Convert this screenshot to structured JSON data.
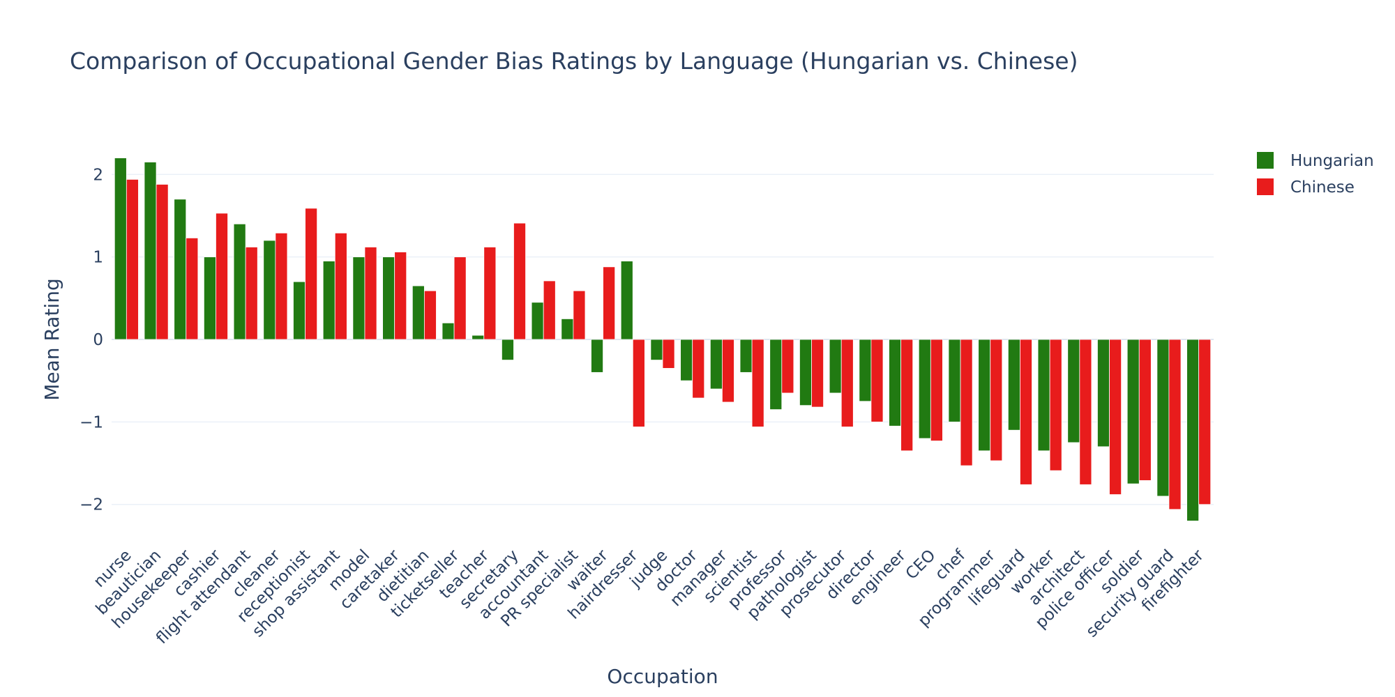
{
  "chart_data": {
    "type": "bar",
    "title": "Comparison of Occupational Gender Bias Ratings by Language (Hungarian vs. Chinese)",
    "xlabel": "Occupation",
    "ylabel": "Mean Rating",
    "ylim": [
      -2.45,
      2.45
    ],
    "yticks": [
      -2,
      -1,
      0,
      1,
      2
    ],
    "ytick_labels": [
      "−2",
      "−1",
      "0",
      "1",
      "2"
    ],
    "grid": true,
    "legend_position": "top-right",
    "categories": [
      "nurse",
      "beautician",
      "housekeeper",
      "cashier",
      "flight attendant",
      "cleaner",
      "receptionist",
      "shop assistant",
      "model",
      "caretaker",
      "dietitian",
      "ticketseller",
      "teacher",
      "secretary",
      "accountant",
      "PR specialist",
      "waiter",
      "hairdresser",
      "judge",
      "doctor",
      "manager",
      "scientist",
      "professor",
      "pathologist",
      "prosecutor",
      "director",
      "engineer",
      "CEO",
      "chef",
      "programmer",
      "lifeguard",
      "worker",
      "architect",
      "police officer",
      "soldier",
      "security guard",
      "firefighter"
    ],
    "series": [
      {
        "name": "Hungarian",
        "color": "#217a12",
        "values": [
          2.2,
          2.15,
          1.7,
          1.0,
          1.4,
          1.2,
          0.7,
          0.95,
          1.0,
          1.0,
          0.65,
          0.2,
          0.05,
          -0.25,
          0.45,
          0.25,
          -0.4,
          0.95,
          -0.25,
          -0.5,
          -0.6,
          -0.4,
          -0.85,
          -0.8,
          -0.65,
          -0.75,
          -1.05,
          -1.2,
          -1.0,
          -1.35,
          -1.1,
          -1.35,
          -1.25,
          -1.3,
          -1.75,
          -1.9,
          -2.2
        ]
      },
      {
        "name": "Chinese",
        "color": "#e81c1c",
        "values": [
          1.94,
          1.88,
          1.23,
          1.53,
          1.12,
          1.29,
          1.59,
          1.29,
          1.12,
          1.06,
          0.59,
          1.0,
          1.12,
          1.41,
          0.71,
          0.59,
          0.88,
          -1.06,
          -0.35,
          -0.71,
          -0.76,
          -1.06,
          -0.65,
          -0.82,
          -1.06,
          -1.0,
          -1.35,
          -1.23,
          -1.53,
          -1.47,
          -1.76,
          -1.59,
          -1.76,
          -1.88,
          -1.71,
          -2.06,
          -2.0
        ]
      }
    ]
  }
}
